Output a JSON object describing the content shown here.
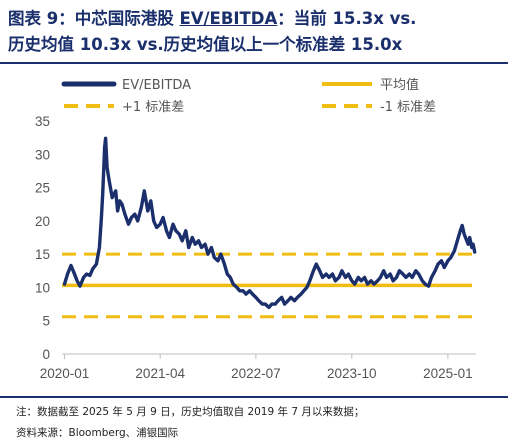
{
  "title": {
    "prefix": "图表 9：中芯国际港股 ",
    "metric": "EV/EBITDA",
    "rest": "：当前 15.3x vs.",
    "line2": "历史均值 10.3x vs.历史均值以上一个标准差 15.0x"
  },
  "notes": {
    "line1": "注：数据截至 2025 年 5 月 9 日，历史均值取自 2019 年 7 月以来数据；",
    "line2": "资料来源：Bloomberg、浦银国际"
  },
  "colors": {
    "series": "#1a2f6b",
    "average": "#f2bd12",
    "std": "#f2bd12",
    "title": "#1a2f6b"
  },
  "chart_data": {
    "type": "line",
    "xlim": [
      "2019-12-20",
      "2025-05-15"
    ],
    "ylim": [
      0,
      35
    ],
    "yticks": [
      0,
      5,
      10,
      15,
      20,
      25,
      30,
      35
    ],
    "xticks": [
      "2020-01",
      "2021-04",
      "2022-07",
      "2023-10",
      "2025-01"
    ],
    "grid": false,
    "legend": {
      "position": "top",
      "entries": [
        "EV/EBITDA",
        "平均值",
        "+1 标准差",
        "-1 标准差"
      ]
    },
    "series": [
      {
        "name": "EV/EBITDA",
        "x": [
          "2020-01-01",
          "2020-01-15",
          "2020-02-01",
          "2020-02-15",
          "2020-03-01",
          "2020-03-15",
          "2020-04-01",
          "2020-04-15",
          "2020-05-01",
          "2020-05-15",
          "2020-06-01",
          "2020-06-15",
          "2020-06-25",
          "2020-07-01",
          "2020-07-06",
          "2020-07-10",
          "2020-07-15",
          "2020-07-22",
          "2020-08-01",
          "2020-08-15",
          "2020-09-01",
          "2020-09-10",
          "2020-09-20",
          "2020-10-01",
          "2020-10-15",
          "2020-11-01",
          "2020-11-15",
          "2020-12-01",
          "2020-12-15",
          "2021-01-01",
          "2021-01-15",
          "2021-02-01",
          "2021-02-15",
          "2021-03-01",
          "2021-03-15",
          "2021-04-01",
          "2021-04-15",
          "2021-05-01",
          "2021-05-15",
          "2021-06-01",
          "2021-06-15",
          "2021-07-01",
          "2021-07-15",
          "2021-08-01",
          "2021-08-15",
          "2021-09-01",
          "2021-09-15",
          "2021-10-01",
          "2021-10-15",
          "2021-11-01",
          "2021-11-15",
          "2021-12-01",
          "2021-12-15",
          "2022-01-01",
          "2022-01-15",
          "2022-02-01",
          "2022-02-15",
          "2022-03-01",
          "2022-03-15",
          "2022-04-01",
          "2022-04-15",
          "2022-05-01",
          "2022-05-15",
          "2022-06-01",
          "2022-06-15",
          "2022-07-01",
          "2022-07-15",
          "2022-08-01",
          "2022-08-15",
          "2022-09-01",
          "2022-09-15",
          "2022-10-01",
          "2022-10-15",
          "2022-11-01",
          "2022-11-15",
          "2022-12-01",
          "2022-12-15",
          "2023-01-01",
          "2023-01-15",
          "2023-02-01",
          "2023-02-15",
          "2023-03-01",
          "2023-03-15",
          "2023-04-01",
          "2023-04-15",
          "2023-05-01",
          "2023-05-15",
          "2023-06-01",
          "2023-06-15",
          "2023-07-01",
          "2023-07-15",
          "2023-08-01",
          "2023-08-15",
          "2023-09-01",
          "2023-09-15",
          "2023-10-01",
          "2023-10-15",
          "2023-11-01",
          "2023-11-15",
          "2023-12-01",
          "2023-12-15",
          "2024-01-01",
          "2024-01-15",
          "2024-02-01",
          "2024-02-15",
          "2024-03-01",
          "2024-03-15",
          "2024-04-01",
          "2024-04-15",
          "2024-05-01",
          "2024-05-15",
          "2024-06-01",
          "2024-06-15",
          "2024-07-01",
          "2024-07-15",
          "2024-08-01",
          "2024-08-15",
          "2024-09-01",
          "2024-09-15",
          "2024-10-01",
          "2024-10-15",
          "2024-11-01",
          "2024-11-15",
          "2024-12-01",
          "2024-12-15",
          "2025-01-01",
          "2025-01-15",
          "2025-02-01",
          "2025-02-15",
          "2025-03-01",
          "2025-03-10",
          "2025-03-20",
          "2025-04-01",
          "2025-04-08",
          "2025-04-15",
          "2025-04-25",
          "2025-05-01",
          "2025-05-09"
        ],
        "values": [
          10.5,
          12.0,
          13.3,
          12.2,
          11.0,
          10.2,
          11.5,
          12.0,
          11.8,
          12.8,
          13.5,
          16.0,
          20.5,
          24.0,
          28.0,
          31.0,
          32.4,
          28.0,
          26.0,
          23.5,
          24.5,
          21.5,
          23.0,
          22.5,
          21.0,
          19.5,
          20.5,
          21.0,
          20.0,
          22.0,
          24.5,
          21.5,
          23.0,
          20.0,
          19.0,
          19.5,
          20.5,
          18.5,
          17.5,
          19.5,
          18.5,
          18.0,
          17.0,
          18.5,
          16.0,
          17.5,
          16.5,
          17.0,
          16.0,
          16.5,
          15.0,
          16.0,
          14.5,
          14.0,
          15.0,
          13.5,
          12.0,
          11.5,
          10.5,
          10.0,
          9.5,
          9.5,
          9.0,
          9.5,
          9.0,
          8.5,
          8.0,
          7.5,
          7.5,
          7.0,
          7.5,
          7.5,
          8.0,
          8.5,
          7.5,
          8.0,
          8.5,
          8.0,
          8.5,
          9.0,
          9.5,
          10.0,
          11.0,
          12.5,
          13.5,
          12.5,
          11.5,
          12.0,
          11.5,
          12.0,
          11.0,
          11.5,
          12.5,
          11.5,
          12.0,
          11.0,
          10.5,
          11.5,
          11.0,
          11.5,
          10.5,
          11.0,
          10.5,
          11.0,
          11.5,
          12.5,
          11.5,
          12.0,
          11.0,
          11.5,
          12.5,
          12.0,
          11.5,
          12.0,
          11.5,
          12.5,
          12.0,
          11.0,
          10.5,
          10.2,
          11.5,
          12.5,
          13.5,
          14.0,
          13.0,
          14.0,
          14.5,
          15.5,
          17.0,
          18.5,
          19.3,
          18.0,
          17.0,
          16.5,
          17.5,
          16.0,
          16.5,
          15.3
        ]
      }
    ],
    "reference_lines": [
      {
        "name": "平均值",
        "value": 10.3,
        "style": "solid"
      },
      {
        "name": "+1 标准差",
        "value": 15.0,
        "style": "dashed"
      },
      {
        "name": "-1 标准差",
        "value": 5.6,
        "style": "dashed"
      }
    ]
  }
}
